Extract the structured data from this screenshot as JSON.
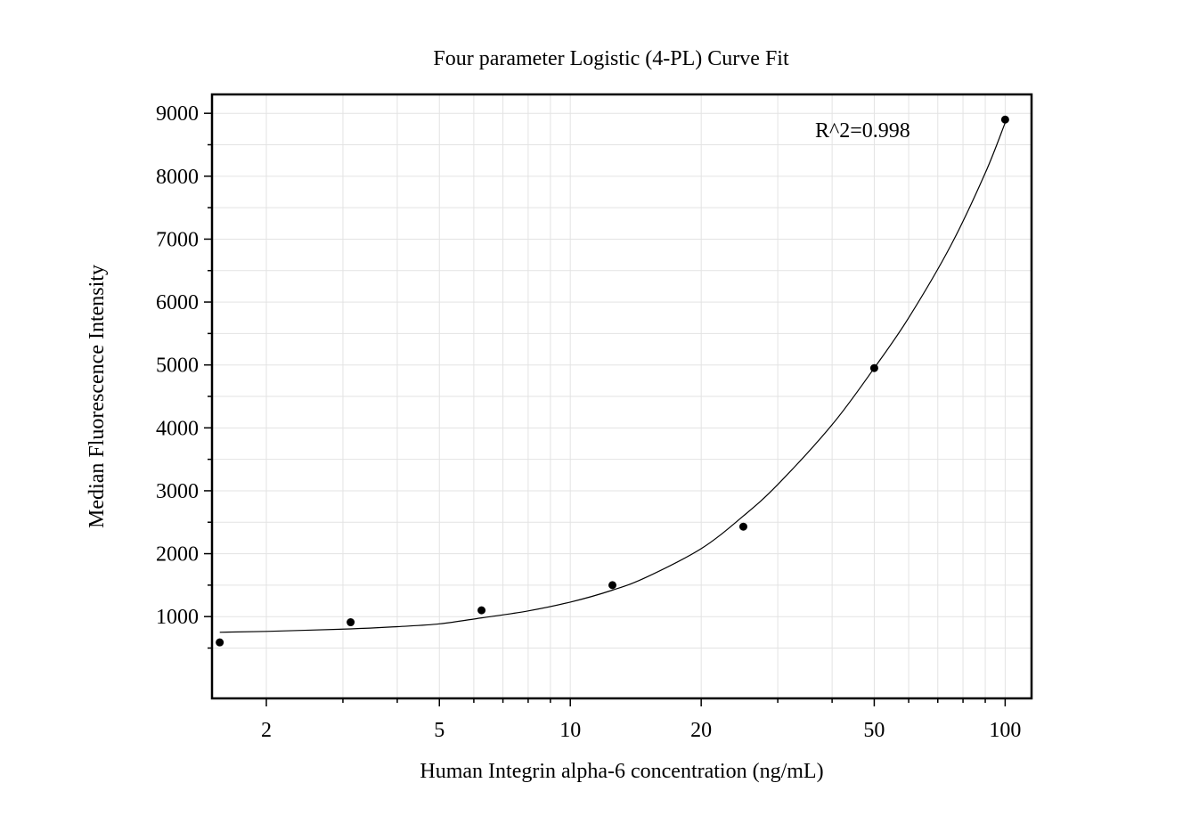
{
  "chart_data": {
    "type": "scatter",
    "title": "Four parameter Logistic (4-PL) Curve Fit",
    "xlabel": "Human Integrin alpha-6 concentration (ng/mL)",
    "ylabel": "Median Fluorescence Intensity",
    "x_scale": "log",
    "xlim": [
      1.5,
      115
    ],
    "ylim": [
      -300,
      9300
    ],
    "x_tick_labels": [
      "2",
      "5",
      "10",
      "20",
      "50",
      "100"
    ],
    "x_ticks": [
      2,
      5,
      10,
      20,
      50,
      100
    ],
    "y_tick_labels": [
      "1000",
      "2000",
      "3000",
      "4000",
      "5000",
      "6000",
      "7000",
      "8000",
      "9000"
    ],
    "y_ticks": [
      1000,
      2000,
      3000,
      4000,
      5000,
      6000,
      7000,
      8000,
      9000
    ],
    "grid": true,
    "annotation": "R^2=0.998",
    "series": [
      {
        "points": [
          {
            "x": 1.5625,
            "y": 590
          },
          {
            "x": 3.125,
            "y": 910
          },
          {
            "x": 6.25,
            "y": 1100
          },
          {
            "x": 12.5,
            "y": 1500
          },
          {
            "x": 25,
            "y": 2430
          },
          {
            "x": 50,
            "y": 4950
          },
          {
            "x": 100,
            "y": 8900
          }
        ]
      }
    ],
    "fit_curve": [
      {
        "x": 1.5625,
        "y": 750
      },
      {
        "x": 2,
        "y": 765
      },
      {
        "x": 3.125,
        "y": 805
      },
      {
        "x": 4,
        "y": 840
      },
      {
        "x": 5,
        "y": 885
      },
      {
        "x": 6.25,
        "y": 980
      },
      {
        "x": 8,
        "y": 1090
      },
      {
        "x": 10,
        "y": 1230
      },
      {
        "x": 12.5,
        "y": 1420
      },
      {
        "x": 15,
        "y": 1630
      },
      {
        "x": 20,
        "y": 2080
      },
      {
        "x": 25,
        "y": 2600
      },
      {
        "x": 30,
        "y": 3100
      },
      {
        "x": 40,
        "y": 4050
      },
      {
        "x": 50,
        "y": 4950
      },
      {
        "x": 60,
        "y": 5750
      },
      {
        "x": 75,
        "y": 6900
      },
      {
        "x": 90,
        "y": 8050
      },
      {
        "x": 100,
        "y": 8850
      }
    ]
  }
}
